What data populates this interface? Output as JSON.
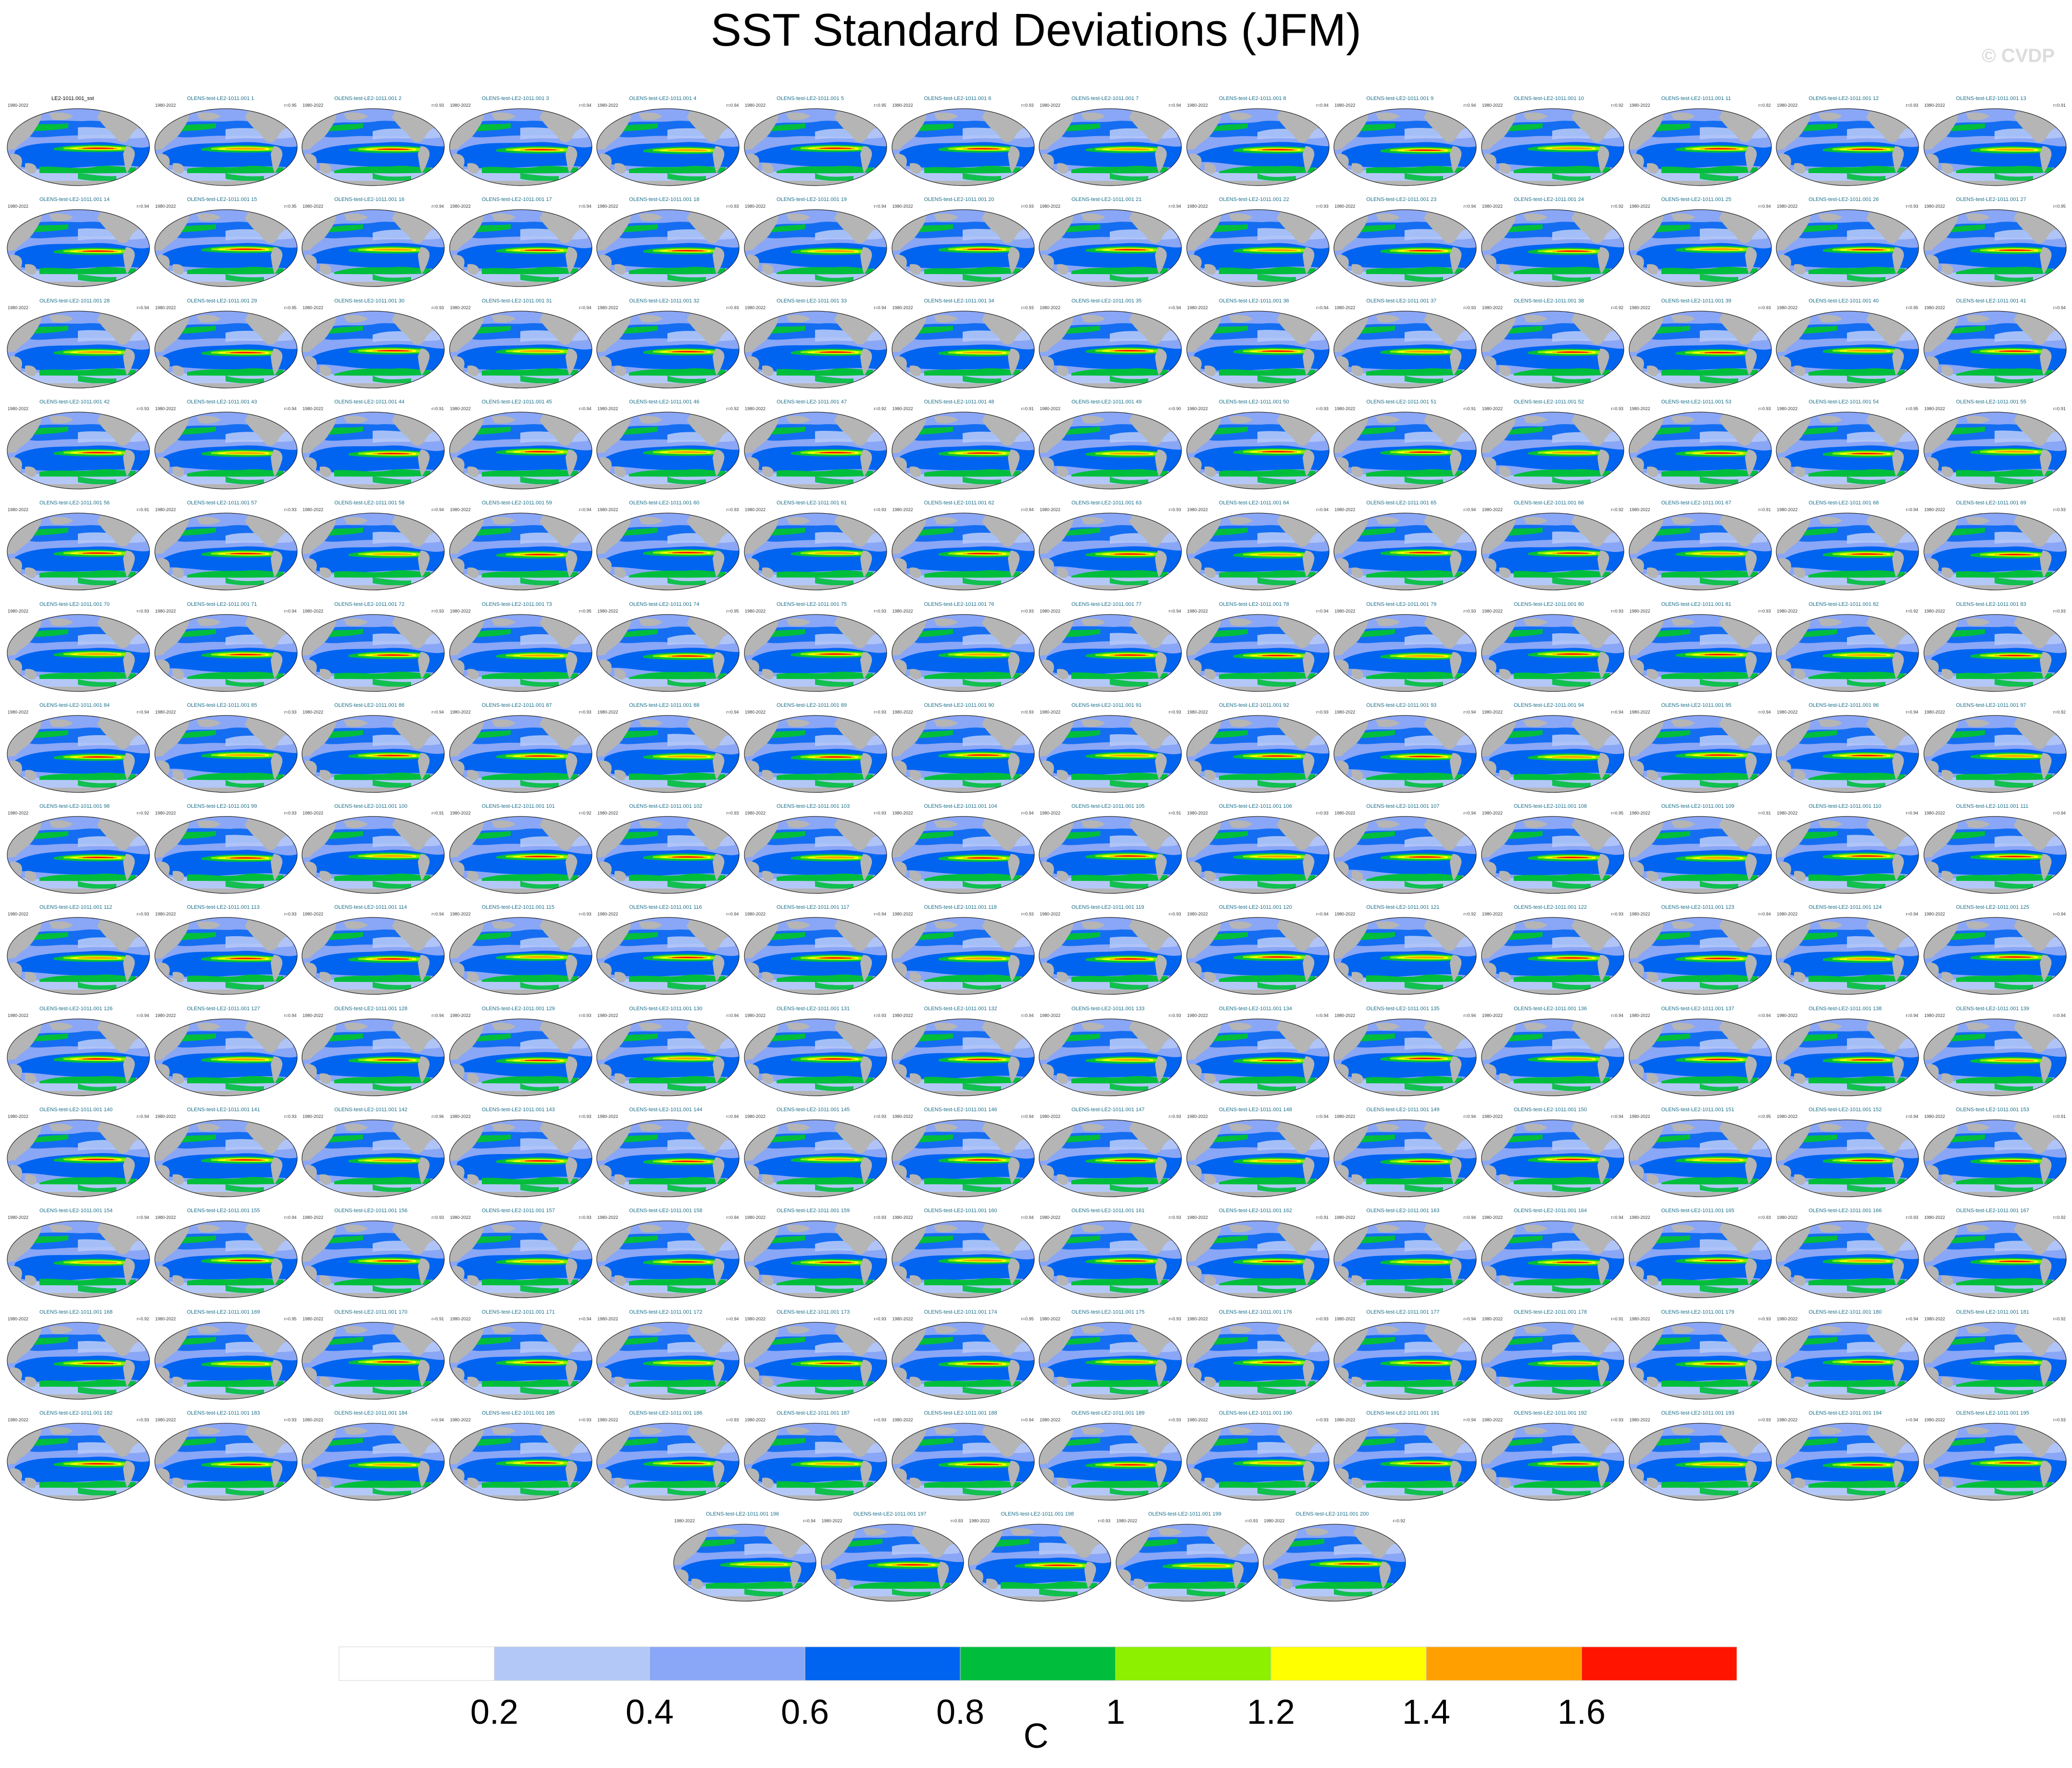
{
  "title": "SST Standard Deviations (JFM)",
  "watermark": "© CVDP",
  "panel_defaults": {
    "years": "1980-2022",
    "title_prefix": "OLENS-test-LE2-1011.001 ",
    "first_title": "LE2-1011.001_sst"
  },
  "grid": {
    "columns": 14,
    "full_rows": 14,
    "panel_count": 201
  },
  "panel_r_values": [
    "",
    "r=0.95",
    "r=0.93",
    "r=0.94",
    "r=0.94",
    "r=0.95",
    "r=0.93",
    "r=0.94",
    "r=0.94",
    "r=0.94",
    "r=0.92",
    "r=0.92",
    "r=0.93",
    "r=0.91",
    "r=0.94",
    "r=0.95",
    "r=0.94",
    "r=0.94",
    "r=0.93",
    "r=0.94",
    "r=0.93",
    "r=0.94",
    "r=0.93",
    "r=0.94",
    "r=0.92",
    "r=0.94",
    "r=0.93",
    "r=0.95",
    "r=0.94",
    "r=0.95",
    "r=0.93",
    "r=0.94",
    "r=0.93",
    "r=0.94",
    "r=0.93",
    "r=0.94",
    "r=0.94",
    "r=0.93",
    "r=0.92",
    "r=0.93",
    "r=0.95",
    "r=0.94",
    "r=0.93",
    "r=0.94",
    "r=0.91",
    "r=0.94",
    "r=0.92",
    "r=0.92",
    "r=0.91",
    "r=0.90",
    "r=0.93",
    "r=0.91",
    "r=0.93",
    "r=0.93",
    "r=0.95",
    "r=0.91",
    "r=0.91",
    "r=0.93",
    "r=0.94",
    "r=0.94",
    "r=0.93",
    "r=0.93",
    "r=0.94",
    "r=0.93",
    "r=0.94",
    "r=0.94",
    "r=0.92",
    "r=0.91",
    "r=0.94",
    "r=0.93",
    "r=0.93",
    "r=0.94",
    "r=0.93",
    "r=0.95",
    "r=0.95",
    "r=0.93",
    "r=0.93",
    "r=0.94",
    "r=0.94",
    "r=0.93",
    "r=0.93",
    "r=0.93",
    "r=0.92",
    "r=0.93",
    "r=0.94",
    "r=0.93",
    "r=0.94",
    "r=0.93",
    "r=0.94",
    "r=0.93",
    "r=0.93",
    "r=0.93",
    "r=0.93",
    "r=0.94",
    "r=0.94",
    "r=0.94",
    "r=0.94",
    "r=0.92",
    "r=0.92",
    "r=0.93",
    "r=0.91",
    "r=0.92",
    "r=0.93",
    "r=0.93",
    "r=0.94",
    "r=0.91",
    "r=0.93",
    "r=0.94",
    "r=0.95",
    "r=0.91",
    "r=0.94",
    "r=0.94",
    "r=0.93",
    "r=0.93",
    "r=0.94",
    "r=0.93",
    "r=0.94",
    "r=0.94",
    "r=0.93",
    "r=0.93",
    "r=0.94",
    "r=0.92",
    "r=0.93",
    "r=0.94",
    "r=0.94",
    "r=0.94",
    "r=0.94",
    "r=0.94",
    "r=0.94",
    "r=0.93",
    "r=0.94",
    "r=0.93",
    "r=0.94",
    "r=0.93",
    "r=0.94",
    "r=0.94",
    "r=0.94",
    "r=0.94",
    "r=0.94",
    "r=0.94",
    "r=0.94",
    "r=0.93",
    "r=0.96",
    "r=0.93",
    "r=0.94",
    "r=0.93",
    "r=0.94",
    "r=0.93",
    "r=0.94",
    "r=0.94",
    "r=0.94",
    "r=0.95",
    "r=0.94",
    "r=0.91",
    "r=0.94",
    "r=0.94",
    "r=0.93",
    "r=0.93",
    "r=0.94",
    "r=0.93",
    "r=0.94",
    "r=0.93",
    "r=0.91",
    "r=0.94",
    "r=0.94",
    "r=0.93",
    "r=0.93",
    "r=0.92",
    "r=0.92",
    "r=0.95",
    "r=0.91",
    "r=0.94",
    "r=0.94",
    "r=0.93",
    "r=0.95",
    "r=0.93",
    "r=0.93",
    "r=0.94",
    "r=0.91",
    "r=0.93",
    "r=0.94",
    "r=0.92",
    "r=0.93",
    "r=0.93",
    "r=0.94",
    "r=0.93",
    "r=0.93",
    "r=0.93",
    "r=0.94",
    "r=0.93",
    "r=0.93",
    "r=0.94",
    "r=0.93",
    "r=0.93",
    "r=0.94",
    "r=0.93",
    "r=0.94",
    "r=0.93",
    "r=0.93",
    "r=0.93",
    "r=0.92"
  ],
  "colorbar": {
    "colors": [
      "#ffffff",
      "#b4c8f8",
      "#8aa6f6",
      "#0064f0",
      "#00be3c",
      "#8cf000",
      "#ffff00",
      "#ffa000",
      "#ff1400"
    ],
    "tick_labels": [
      "0.2",
      "0.4",
      "0.6",
      "0.8",
      "1",
      "1.2",
      "1.4",
      "1.6"
    ],
    "units": "C"
  },
  "map_colors": {
    "land": "#b5b5b5",
    "ocean_low": "#b4c8f8",
    "ocean_mid": "#8aa6f6",
    "blue": "#0064f0",
    "green": "#00be3c",
    "lime": "#8cf000",
    "yellow": "#ffff00",
    "orange": "#ffa000",
    "red": "#ff1400"
  }
}
